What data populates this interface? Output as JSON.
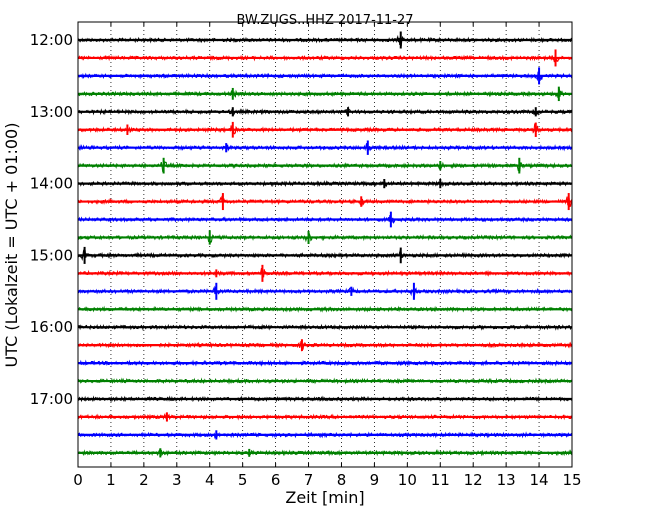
{
  "chart_data": {
    "type": "line",
    "title": "BW.ZUGS..HHZ 2017-11-27",
    "xlabel": "Zeit  [min]",
    "ylabel": "UTC (Lokalzeit = UTC + 01:00)",
    "xlim": [
      0,
      15
    ],
    "x_ticks": [
      "0",
      "1",
      "2",
      "3",
      "4",
      "5",
      "6",
      "7",
      "8",
      "9",
      "10",
      "11",
      "12",
      "13",
      "14",
      "15"
    ],
    "y_tick_labels": [
      "12:00",
      "13:00",
      "14:00",
      "15:00",
      "16:00",
      "17:00"
    ],
    "grid": "dotted vertical",
    "trace_interval_min": 15,
    "colors": [
      "#000000",
      "#ff0000",
      "#0000ff",
      "#008000"
    ],
    "traces": [
      {
        "start": "12:00",
        "color": "#000000",
        "events": [
          {
            "t": 9.8,
            "amp": 1.0
          }
        ]
      },
      {
        "start": "12:15",
        "color": "#ff0000",
        "events": [
          {
            "t": 14.5,
            "amp": 1.0
          }
        ]
      },
      {
        "start": "12:30",
        "color": "#0000ff",
        "events": [
          {
            "t": 14.0,
            "amp": 1.0
          }
        ]
      },
      {
        "start": "12:45",
        "color": "#008000",
        "events": [
          {
            "t": 4.7,
            "amp": 0.6
          },
          {
            "t": 14.6,
            "amp": 0.8
          }
        ]
      },
      {
        "start": "13:00",
        "color": "#000000",
        "events": [
          {
            "t": 4.7,
            "amp": 0.4
          },
          {
            "t": 8.2,
            "amp": 0.4
          },
          {
            "t": 13.9,
            "amp": 0.4
          }
        ]
      },
      {
        "start": "13:15",
        "color": "#ff0000",
        "events": [
          {
            "t": 1.5,
            "amp": 0.5
          },
          {
            "t": 4.7,
            "amp": 0.9
          },
          {
            "t": 13.9,
            "amp": 0.8
          }
        ]
      },
      {
        "start": "13:30",
        "color": "#0000ff",
        "events": [
          {
            "t": 4.5,
            "amp": 0.4
          },
          {
            "t": 8.8,
            "amp": 0.8
          }
        ]
      },
      {
        "start": "13:45",
        "color": "#008000",
        "events": [
          {
            "t": 2.6,
            "amp": 0.9
          },
          {
            "t": 11.0,
            "amp": 0.4
          },
          {
            "t": 13.4,
            "amp": 0.9
          }
        ]
      },
      {
        "start": "14:00",
        "color": "#000000",
        "events": [
          {
            "t": 9.3,
            "amp": 0.4
          },
          {
            "t": 11.0,
            "amp": 0.4
          }
        ]
      },
      {
        "start": "14:15",
        "color": "#ff0000",
        "events": [
          {
            "t": 4.4,
            "amp": 1.0
          },
          {
            "t": 8.6,
            "amp": 0.5
          },
          {
            "t": 14.9,
            "amp": 1.0
          }
        ]
      },
      {
        "start": "14:30",
        "color": "#0000ff",
        "events": [
          {
            "t": 9.5,
            "amp": 0.9
          }
        ]
      },
      {
        "start": "14:45",
        "color": "#008000",
        "events": [
          {
            "t": 4.0,
            "amp": 0.8
          },
          {
            "t": 7.0,
            "amp": 0.7
          }
        ]
      },
      {
        "start": "15:00",
        "color": "#000000",
        "events": [
          {
            "t": 0.2,
            "amp": 1.0
          },
          {
            "t": 9.8,
            "amp": 0.9
          }
        ]
      },
      {
        "start": "15:15",
        "color": "#ff0000",
        "events": [
          {
            "t": 4.2,
            "amp": 0.3
          },
          {
            "t": 5.6,
            "amp": 1.0
          }
        ]
      },
      {
        "start": "15:30",
        "color": "#0000ff",
        "events": [
          {
            "t": 4.2,
            "amp": 1.0
          },
          {
            "t": 8.3,
            "amp": 0.4
          },
          {
            "t": 10.2,
            "amp": 1.0
          }
        ]
      },
      {
        "start": "15:45",
        "color": "#008000",
        "events": []
      },
      {
        "start": "16:00",
        "color": "#000000",
        "events": []
      },
      {
        "start": "16:15",
        "color": "#ff0000",
        "events": [
          {
            "t": 6.8,
            "amp": 0.6
          }
        ]
      },
      {
        "start": "16:30",
        "color": "#0000ff",
        "events": []
      },
      {
        "start": "16:45",
        "color": "#008000",
        "events": []
      },
      {
        "start": "17:00",
        "color": "#000000",
        "events": []
      },
      {
        "start": "17:15",
        "color": "#ff0000",
        "events": [
          {
            "t": 2.7,
            "amp": 0.4
          }
        ]
      },
      {
        "start": "17:30",
        "color": "#0000ff",
        "events": [
          {
            "t": 4.2,
            "amp": 0.4
          }
        ]
      },
      {
        "start": "17:45",
        "color": "#008000",
        "events": [
          {
            "t": 2.5,
            "amp": 0.4
          },
          {
            "t": 5.2,
            "amp": 0.3
          }
        ]
      }
    ]
  }
}
